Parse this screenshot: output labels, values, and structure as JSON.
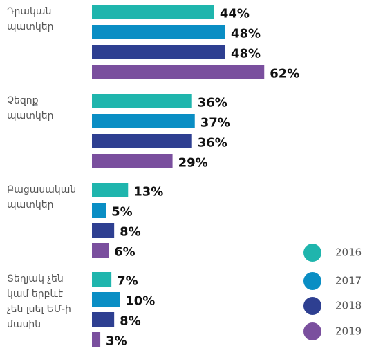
{
  "chart_data": {
    "type": "bar",
    "orientation": "horizontal",
    "categories": [
      "Դրական\nպատկեր",
      "Չեզոք\nպատկեր",
      "Բացասական\nպատկեր",
      "Տեղյակ չեն\nկամ երբևէ\nչեն լսել ԵՄ-ի\nմասին"
    ],
    "series": [
      {
        "name": "2016",
        "color": "#1fb5ad",
        "values": [
          44,
          36,
          13,
          7
        ],
        "value_labels": [
          "44%",
          "36%",
          "13%",
          "7%"
        ]
      },
      {
        "name": "2017",
        "color": "#0a8ec4",
        "values": [
          48,
          37,
          5,
          10
        ],
        "value_labels": [
          "48%",
          "37%",
          "5%",
          "10%"
        ]
      },
      {
        "name": "2018",
        "color": "#2e3f91",
        "values": [
          48,
          36,
          8,
          8
        ],
        "value_labels": [
          "48%",
          "36%",
          "8%",
          "8%"
        ]
      },
      {
        "name": "2019",
        "color": "#7a4f9e",
        "values": [
          62,
          29,
          6,
          3
        ],
        "value_labels": [
          "62%",
          "29%",
          "6%",
          "3%"
        ]
      }
    ],
    "legend": "bottom-right"
  }
}
